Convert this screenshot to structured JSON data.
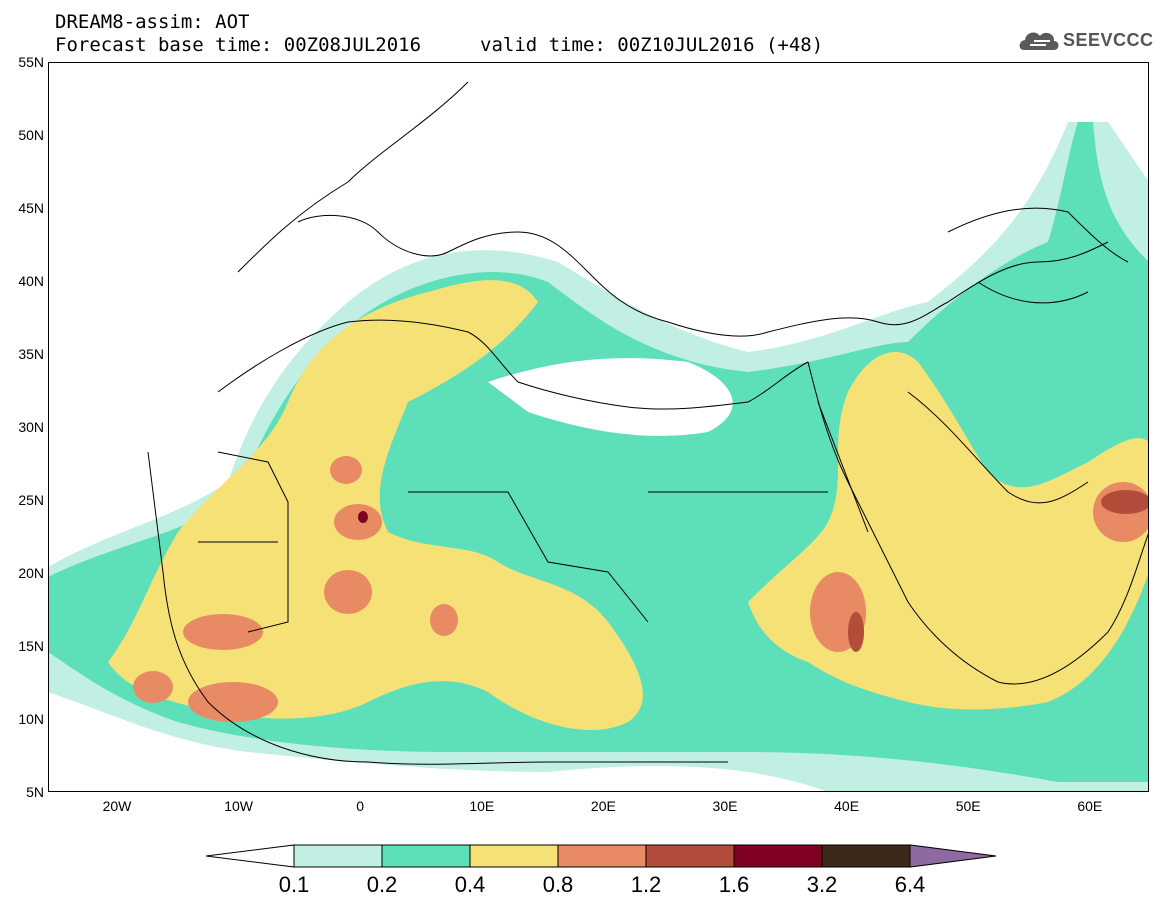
{
  "header": {
    "title": "DREAM8-assim: AOT",
    "base_time": "Forecast base time: 00Z08JUL2016",
    "valid_time": "valid time: 00Z10JUL2016 (+48)",
    "logo_text": "SEEVCCC",
    "logo_icon": "cloud-icon"
  },
  "map": {
    "lat_labels": [
      "55N",
      "50N",
      "45N",
      "40N",
      "35N",
      "30N",
      "25N",
      "20N",
      "15N",
      "10N",
      "5N"
    ],
    "lon_labels": [
      "20W",
      "10W",
      "0",
      "10E",
      "20E",
      "30E",
      "40E",
      "50E",
      "60E"
    ],
    "background": "#ffffff",
    "coastline_color": "#000000"
  },
  "colorbar": {
    "labels": [
      "0.1",
      "0.2",
      "0.4",
      "0.8",
      "1.2",
      "1.6",
      "3.2",
      "6.4"
    ],
    "colors": [
      "#ffffff",
      "#c2efe4",
      "#5ddfba",
      "#f5e176",
      "#e88a63",
      "#b34c3a",
      "#800021",
      "#3b2a1a",
      "#8e6aa3"
    ]
  }
}
